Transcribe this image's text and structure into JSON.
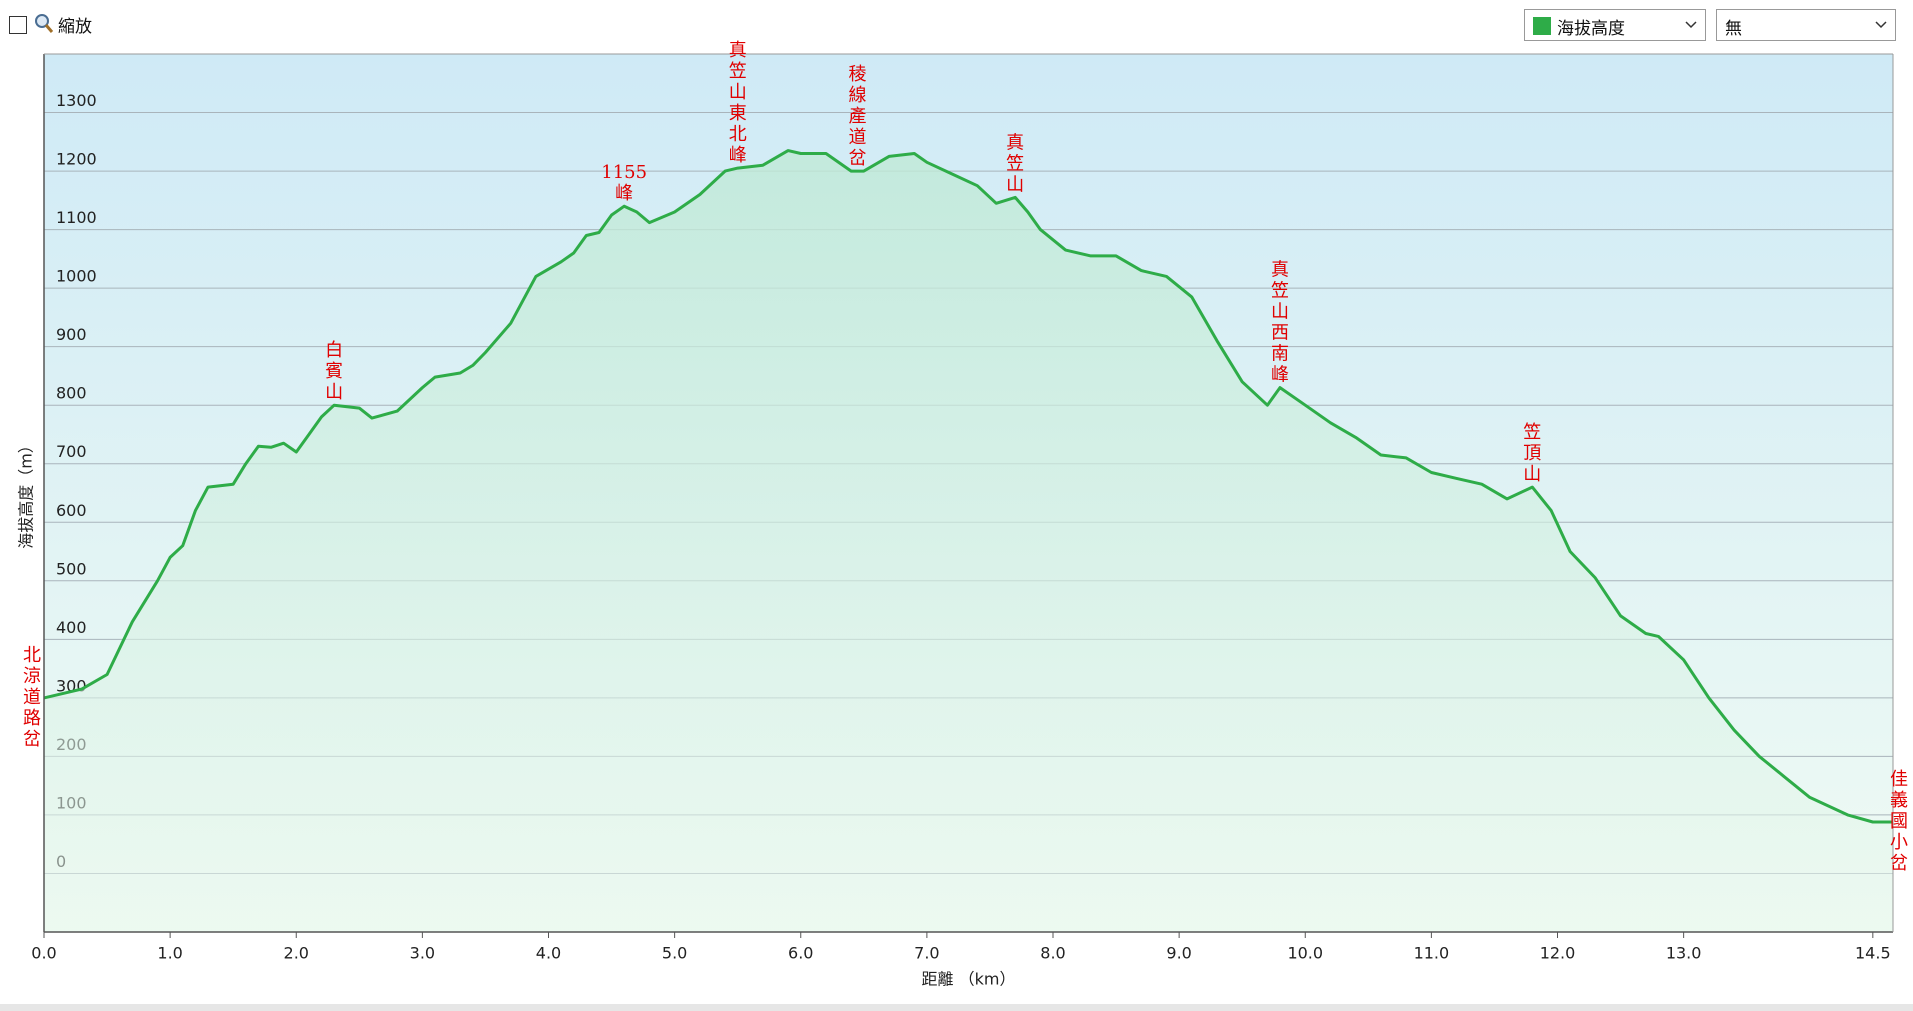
{
  "toolbar": {
    "zoom_label": "縮放",
    "second_select": "無"
  },
  "chart_data": {
    "type": "line",
    "x_label": "距離 （km）",
    "y_label": "海拔高度（m）",
    "x": [
      0,
      0.3,
      0.5,
      0.7,
      0.9,
      1.0,
      1.1,
      1.2,
      1.3,
      1.5,
      1.6,
      1.7,
      1.8,
      1.9,
      2.0,
      2.1,
      2.2,
      2.3,
      2.5,
      2.6,
      2.8,
      3.0,
      3.1,
      3.3,
      3.4,
      3.5,
      3.7,
      3.8,
      3.9,
      4.1,
      4.2,
      4.3,
      4.4,
      4.5,
      4.6,
      4.7,
      4.8,
      5.0,
      5.2,
      5.4,
      5.5,
      5.7,
      5.9,
      6.0,
      6.2,
      6.4,
      6.5,
      6.7,
      6.9,
      7.0,
      7.2,
      7.4,
      7.55,
      7.7,
      7.8,
      7.9,
      8.1,
      8.3,
      8.5,
      8.7,
      8.9,
      9.1,
      9.3,
      9.5,
      9.7,
      9.8,
      10.0,
      10.2,
      10.4,
      10.6,
      10.8,
      11.0,
      11.2,
      11.4,
      11.6,
      11.8,
      11.95,
      12.1,
      12.3,
      12.5,
      12.7,
      12.8,
      13.0,
      13.2,
      13.4,
      13.6,
      13.8,
      14.0,
      14.3,
      14.5,
      14.66
    ],
    "series": [
      {
        "name": "海拔高度",
        "color": "#2eac48",
        "values": [
          300,
          315,
          340,
          430,
          500,
          540,
          560,
          620,
          660,
          665,
          700,
          730,
          728,
          735,
          720,
          750,
          780,
          800,
          795,
          778,
          790,
          830,
          848,
          855,
          868,
          890,
          940,
          980,
          1020,
          1045,
          1060,
          1090,
          1095,
          1125,
          1140,
          1130,
          1112,
          1130,
          1160,
          1200,
          1205,
          1210,
          1235,
          1230,
          1230,
          1200,
          1200,
          1225,
          1230,
          1215,
          1195,
          1175,
          1145,
          1155,
          1130,
          1100,
          1065,
          1055,
          1055,
          1030,
          1020,
          985,
          910,
          840,
          800,
          830,
          800,
          770,
          745,
          715,
          710,
          685,
          675,
          665,
          640,
          660,
          620,
          550,
          505,
          440,
          410,
          405,
          365,
          300,
          245,
          200,
          165,
          130,
          100,
          88,
          88
        ]
      }
    ],
    "annotations": [
      {
        "label": "北涼道路岔",
        "x": 0
      },
      {
        "label": "白賓山",
        "x": 2.3
      },
      {
        "label": "1155峰",
        "x": 4.6
      },
      {
        "label": "真笠山東北峰",
        "x": 5.5
      },
      {
        "label": "稜線產道岔",
        "x": 6.45
      },
      {
        "label": "真笠山",
        "x": 7.7
      },
      {
        "label": "真笠山西南峰",
        "x": 9.8
      },
      {
        "label": "笠頂山",
        "x": 11.8
      },
      {
        "label": "佳義國小岔",
        "x": 14.66
      }
    ],
    "xlim": [
      0,
      14.66
    ],
    "ylim": [
      -100,
      1400
    ],
    "xticks": [
      {
        "value": 0,
        "label": "0.0"
      },
      {
        "value": 1,
        "label": "1.0"
      },
      {
        "value": 2,
        "label": "2.0"
      },
      {
        "value": 3,
        "label": "3.0"
      },
      {
        "value": 4,
        "label": "4.0"
      },
      {
        "value": 5,
        "label": "5.0"
      },
      {
        "value": 6,
        "label": "6.0"
      },
      {
        "value": 7,
        "label": "7.0"
      },
      {
        "value": 8,
        "label": "8.0"
      },
      {
        "value": 9,
        "label": "9.0"
      },
      {
        "value": 10,
        "label": "10.0"
      },
      {
        "value": 11,
        "label": "11.0"
      },
      {
        "value": 12,
        "label": "12.0"
      },
      {
        "value": 13,
        "label": "13.0"
      },
      {
        "value": 14.5,
        "label": "14.5"
      }
    ],
    "yticks": [
      0,
      100,
      200,
      300,
      400,
      500,
      600,
      700,
      800,
      900,
      1000,
      1100,
      1200,
      1300
    ],
    "grid": true
  }
}
